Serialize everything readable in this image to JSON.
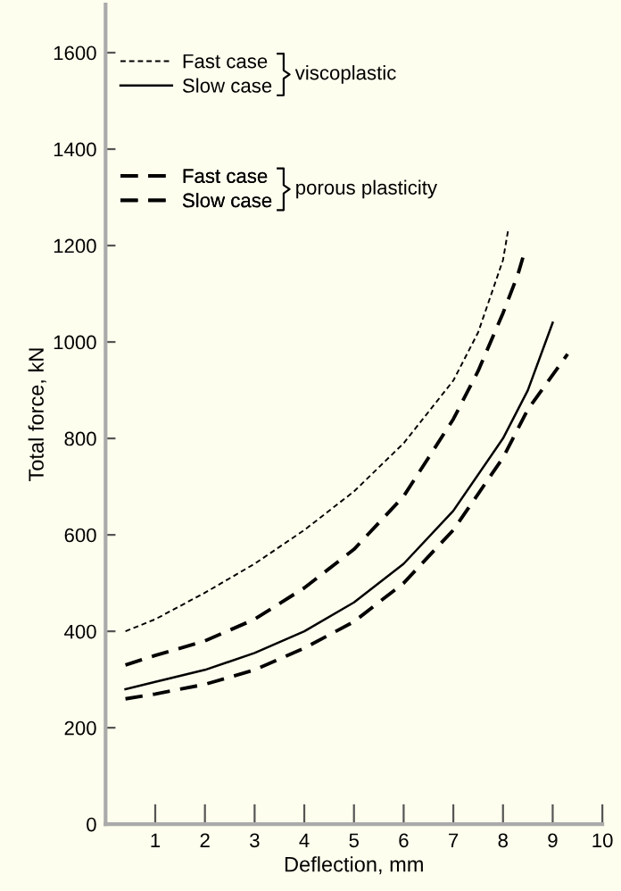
{
  "chart_data": {
    "type": "line",
    "xlabel": "Deflection, mm",
    "ylabel": "Total force, kN",
    "xlim": [
      0,
      10
    ],
    "ylim": [
      0,
      1700
    ],
    "xticks": [
      1,
      2,
      3,
      4,
      5,
      6,
      7,
      8,
      9,
      10
    ],
    "yticks": [
      0,
      200,
      400,
      600,
      800,
      1000,
      1200,
      1400,
      1600
    ],
    "grid": false,
    "legend": "top left",
    "marker": "none",
    "annotations": [
      "viscoplastic",
      "porous plasticity"
    ],
    "series": [
      {
        "name": "Fast case",
        "color": "#000000",
        "line_style": "dotted",
        "x": [
          0.4,
          1,
          2,
          3,
          4,
          5,
          6,
          7,
          7.5,
          8,
          8.1
        ],
        "values": [
          400,
          425,
          480,
          540,
          610,
          690,
          790,
          920,
          1020,
          1170,
          1230
        ]
      },
      {
        "name": "Slow case",
        "color": "#000000",
        "line_style": "solid",
        "x": [
          0.4,
          1,
          2,
          3,
          4,
          5,
          6,
          7,
          8,
          8.5,
          9
        ],
        "values": [
          280,
          295,
          320,
          355,
          400,
          460,
          540,
          650,
          800,
          900,
          1040
        ]
      },
      {
        "name": "Fast case",
        "color": "#000000",
        "line_style": "dashed",
        "x": [
          0.4,
          1,
          2,
          3,
          4,
          5,
          6,
          6.5,
          7,
          7.5,
          8,
          8.3,
          8.4
        ],
        "values": [
          330,
          350,
          380,
          425,
          490,
          570,
          680,
          760,
          840,
          940,
          1060,
          1140,
          1175
        ]
      },
      {
        "name": "Slow case",
        "color": "#000000",
        "line_style": "dashed",
        "x": [
          0.4,
          1,
          2,
          3,
          4,
          5,
          6,
          7,
          8,
          8.5,
          9.3
        ],
        "values": [
          260,
          270,
          290,
          320,
          365,
          420,
          500,
          610,
          760,
          860,
          975
        ]
      }
    ]
  }
}
